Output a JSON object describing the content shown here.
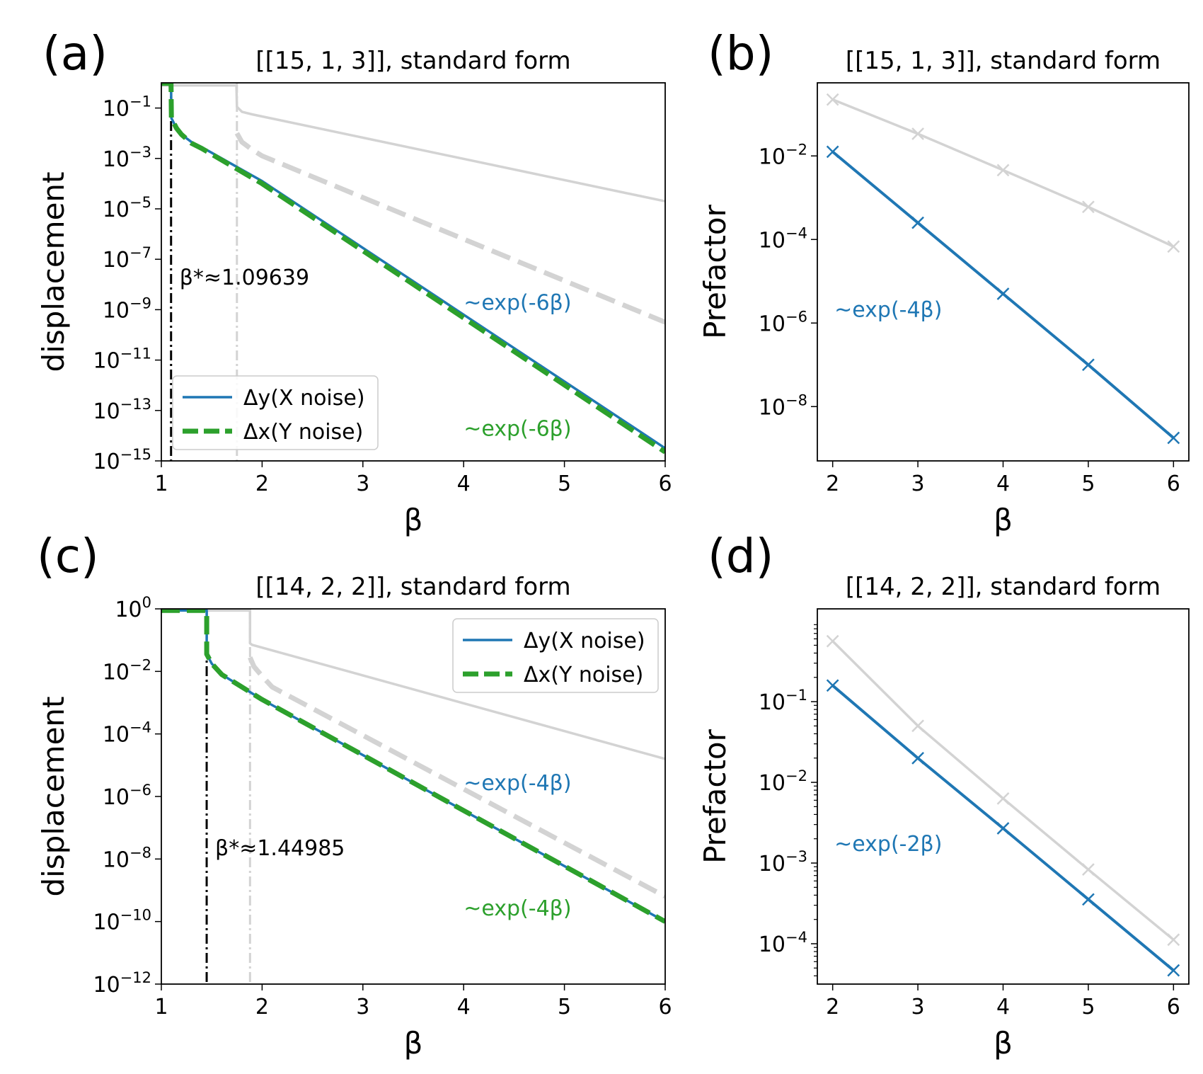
{
  "colors": {
    "blue": "#1f77b4",
    "green": "#2ca02c",
    "gray": "#d3d3d3",
    "black": "#000000"
  },
  "chart_data": [
    {
      "panel": "(a)",
      "type": "line",
      "title": "[[15, 1, 3]], standard form",
      "xlabel": "β",
      "ylabel": "displacement",
      "yscale": "log",
      "xlim": [
        1,
        6
      ],
      "ylim_exp": [
        -15,
        0
      ],
      "xticks": [
        1,
        2,
        3,
        4,
        5,
        6
      ],
      "ytick_exps": [
        -15,
        -13,
        -11,
        -9,
        -7,
        -5,
        -3,
        -1
      ],
      "legend_loc": "lower-left",
      "vlines": [
        {
          "x": 1.09639,
          "color": "black",
          "label": "β*≈1.09639"
        },
        {
          "x": 1.75,
          "color": "gray",
          "label": ""
        }
      ],
      "series": [
        {
          "name": "gray solid",
          "style": "solid",
          "color": "gray",
          "legend": false,
          "x": [
            1.0,
            1.745,
            1.745,
            1.75,
            1.8,
            1.9,
            6.0
          ],
          "logy": [
            -0.1,
            -0.1,
            -0.1,
            -0.95,
            -1.15,
            -1.25,
            -4.7
          ]
        },
        {
          "name": "gray dashed",
          "style": "dashed",
          "color": "gray",
          "legend": false,
          "x": [
            1.75,
            1.8,
            1.9,
            2.0,
            6.0
          ],
          "logy": [
            -2.0,
            -2.35,
            -2.65,
            -2.9,
            -9.5
          ]
        },
        {
          "name": "Δy(X noise)",
          "style": "solid",
          "color": "blue",
          "legend": true,
          "x": [
            1.0,
            1.09639,
            1.1,
            1.15,
            1.2,
            1.3,
            1.4,
            2.0,
            6.0
          ],
          "logy": [
            -0.02,
            -0.02,
            -1.4,
            -1.8,
            -2.05,
            -2.35,
            -2.55,
            -3.9,
            -14.5
          ]
        },
        {
          "name": "Δx(Y noise)",
          "style": "dashed",
          "color": "green",
          "legend": true,
          "x": [
            1.0,
            1.09639,
            1.1,
            1.15,
            1.2,
            1.3,
            1.4,
            2.0,
            6.0
          ],
          "logy": [
            -0.02,
            -0.02,
            -1.4,
            -1.8,
            -2.05,
            -2.4,
            -2.6,
            -4.0,
            -14.65
          ]
        }
      ],
      "annotations": [
        {
          "text": "~exp(-6β)",
          "color": "blue",
          "x": 4.0,
          "logy": -9.0
        },
        {
          "text": "~exp(-6β)",
          "color": "green",
          "x": 4.0,
          "logy": -14.0
        }
      ]
    },
    {
      "panel": "(b)",
      "type": "line",
      "title": "[[15, 1, 3]], standard form",
      "xlabel": "β",
      "ylabel": "Prefactor",
      "yscale": "log",
      "xlim": [
        1.82,
        6.18
      ],
      "ylim_exp": [
        -9.3,
        -0.25
      ],
      "xticks": [
        2,
        3,
        4,
        5,
        6
      ],
      "ytick_exps": [
        -8,
        -6,
        -4,
        -2
      ],
      "minor_ticks": false,
      "series": [
        {
          "name": "gray",
          "color": "gray",
          "marker": "x",
          "x": [
            2,
            3,
            4,
            5,
            6
          ],
          "logy": [
            -0.65,
            -1.47,
            -2.34,
            -3.22,
            -4.17
          ]
        },
        {
          "name": "blue",
          "color": "blue",
          "marker": "x",
          "x": [
            2,
            3,
            4,
            5,
            6
          ],
          "logy": [
            -1.9,
            -3.6,
            -5.3,
            -7.0,
            -8.75
          ]
        }
      ],
      "annotations": [
        {
          "text": "~exp(-4β)",
          "color": "blue",
          "x": 2.02,
          "logy": -5.85
        }
      ]
    },
    {
      "panel": "(c)",
      "type": "line",
      "title": "[[14, 2, 2]], standard form",
      "xlabel": "β",
      "ylabel": "displacement",
      "yscale": "log",
      "xlim": [
        1,
        6
      ],
      "ylim_exp": [
        -12,
        0
      ],
      "xticks": [
        1,
        2,
        3,
        4,
        5,
        6
      ],
      "ytick_exps": [
        -12,
        -10,
        -8,
        -6,
        -4,
        -2,
        0
      ],
      "legend_loc": "upper-right",
      "vlines": [
        {
          "x": 1.44985,
          "color": "black",
          "label": "β*≈1.44985"
        },
        {
          "x": 1.88,
          "color": "gray",
          "label": ""
        }
      ],
      "series": [
        {
          "name": "gray solid",
          "style": "solid",
          "color": "gray",
          "legend": false,
          "x": [
            1.0,
            1.88,
            1.88,
            1.9,
            6.0
          ],
          "logy": [
            -0.05,
            -0.05,
            -1.1,
            -1.15,
            -4.8
          ]
        },
        {
          "name": "gray dashed",
          "style": "dashed",
          "color": "gray",
          "legend": false,
          "x": [
            1.88,
            1.92,
            2.0,
            2.1,
            6.0
          ],
          "logy": [
            -1.55,
            -1.85,
            -2.15,
            -2.5,
            -9.2
          ]
        },
        {
          "name": "Δy(X noise)",
          "style": "solid",
          "color": "blue",
          "legend": true,
          "x": [
            1.0,
            1.44985,
            1.45,
            1.5,
            1.6,
            1.7,
            2.0,
            6.0
          ],
          "logy": [
            -0.05,
            -0.05,
            -1.45,
            -1.75,
            -2.1,
            -2.3,
            -2.9,
            -10.0
          ]
        },
        {
          "name": "Δx(Y noise)",
          "style": "dashed",
          "color": "green",
          "legend": true,
          "x": [
            1.0,
            1.44985,
            1.45,
            1.5,
            1.6,
            1.7,
            2.0,
            6.0
          ],
          "logy": [
            -0.05,
            -0.05,
            -1.45,
            -1.75,
            -2.1,
            -2.3,
            -2.9,
            -10.0
          ]
        }
      ],
      "annotations": [
        {
          "text": "~exp(-4β)",
          "color": "blue",
          "x": 4.0,
          "logy": -5.8
        },
        {
          "text": "~exp(-4β)",
          "color": "green",
          "x": 4.0,
          "logy": -9.8
        }
      ]
    },
    {
      "panel": "(d)",
      "type": "line",
      "title": "[[14, 2, 2]], standard form",
      "xlabel": "β",
      "ylabel": "Prefactor",
      "yscale": "log",
      "xlim": [
        1.82,
        6.18
      ],
      "ylim_exp": [
        -4.5,
        0.15
      ],
      "xticks": [
        2,
        3,
        4,
        5,
        6
      ],
      "ytick_exps": [
        -4,
        -3,
        -2,
        -1
      ],
      "minor_ticks": true,
      "series": [
        {
          "name": "gray",
          "color": "gray",
          "marker": "x",
          "x": [
            2,
            3,
            4,
            5,
            6
          ],
          "logy": [
            -0.25,
            -1.3,
            -2.2,
            -3.08,
            -3.95
          ]
        },
        {
          "name": "blue",
          "color": "blue",
          "marker": "x",
          "x": [
            2,
            3,
            4,
            5,
            6
          ],
          "logy": [
            -0.8,
            -1.7,
            -2.57,
            -3.45,
            -4.33
          ]
        }
      ],
      "annotations": [
        {
          "text": "~exp(-2β)",
          "color": "blue",
          "x": 2.02,
          "logy": -2.85
        }
      ]
    }
  ],
  "legend": {
    "items": [
      {
        "label": "Δy(X noise)",
        "color": "blue",
        "style": "solid"
      },
      {
        "label": "Δx(Y noise)",
        "color": "green",
        "style": "dashed"
      }
    ]
  }
}
